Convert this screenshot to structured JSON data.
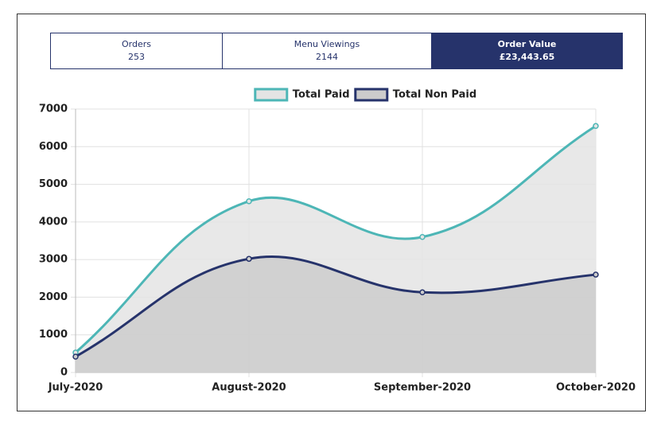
{
  "tabs": [
    {
      "label": "Orders",
      "value": "253"
    },
    {
      "label": "Menu Viewings",
      "value": "2144"
    },
    {
      "label": "Order Value",
      "value": "£23,443.65"
    }
  ],
  "chart_data": {
    "type": "line",
    "categories": [
      "July-2020",
      "August-2020",
      "September-2020",
      "October-2020"
    ],
    "series": [
      {
        "name": "Total Paid",
        "color": "#4db6b6",
        "fill": "#e4e4e4",
        "values": [
          530,
          4550,
          3600,
          6550
        ]
      },
      {
        "name": "Total Non Paid",
        "color": "#26336b",
        "fill": "#cccccc",
        "values": [
          420,
          3020,
          2130,
          2600
        ]
      }
    ],
    "ylim": [
      0,
      7000
    ],
    "yticks": [
      0,
      1000,
      2000,
      3000,
      4000,
      5000,
      6000,
      7000
    ],
    "grid": true,
    "legend": "top"
  }
}
